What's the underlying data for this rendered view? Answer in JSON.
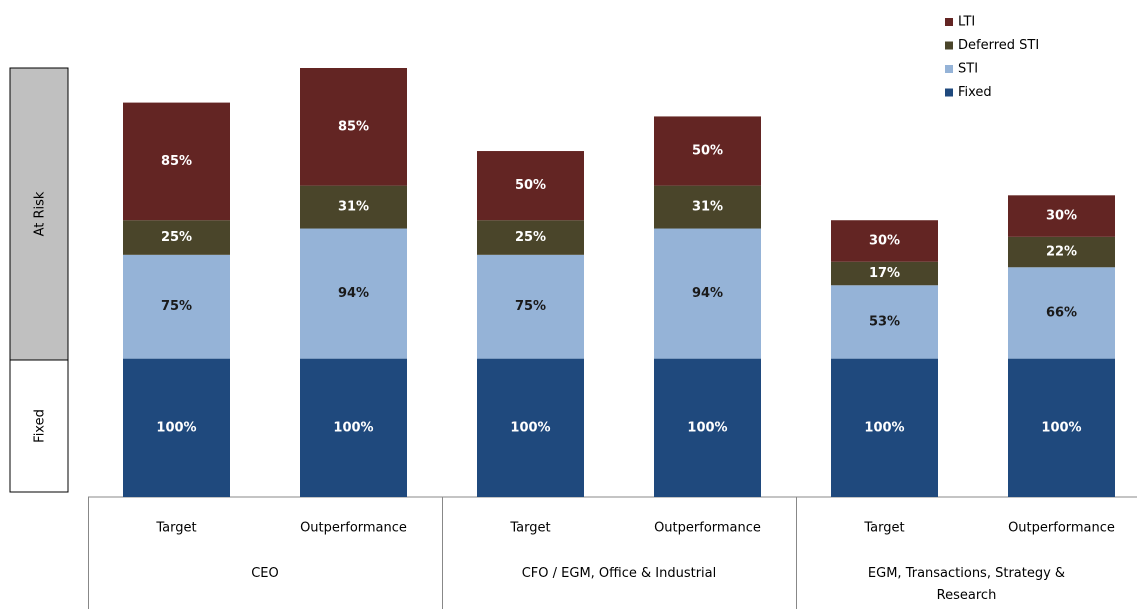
{
  "chart_data": {
    "type": "stacked_bar",
    "categories": [
      "Target",
      "Outperformance",
      "Target",
      "Outperformance",
      "Target",
      "Outperformance"
    ],
    "groups": [
      "CEO",
      "CFO / EGM, Office & Industrial",
      "EGM, Transactions, Strategy & Research"
    ],
    "bands": [
      "At Risk",
      "Fixed"
    ],
    "series": [
      {
        "name": "Fixed",
        "color": "#1f497d",
        "label_color": "#ffffff",
        "values": [
          100,
          100,
          100,
          100,
          100,
          100
        ],
        "value_labels": [
          "100%",
          "100%",
          "100%",
          "100%",
          "100%",
          "100%"
        ]
      },
      {
        "name": "STI",
        "color": "#95b3d7",
        "label_color": "#1a1a1a",
        "values": [
          75,
          94,
          75,
          94,
          53,
          66
        ],
        "value_labels": [
          "75%",
          "94%",
          "75%",
          "94%",
          "53%",
          "66%"
        ]
      },
      {
        "name": "Deferred STI",
        "color": "#4a452a",
        "label_color": "#ffffff",
        "values": [
          25,
          31,
          25,
          31,
          17,
          22
        ],
        "value_labels": [
          "25%",
          "31%",
          "25%",
          "31%",
          "17%",
          "22%"
        ]
      },
      {
        "name": "LTI",
        "color": "#632523",
        "label_color": "#ffffff",
        "values": [
          85,
          85,
          50,
          50,
          30,
          30
        ],
        "value_labels": [
          "85%",
          "85%",
          "50%",
          "50%",
          "30%",
          "30%"
        ]
      }
    ],
    "legend": "top-right"
  }
}
